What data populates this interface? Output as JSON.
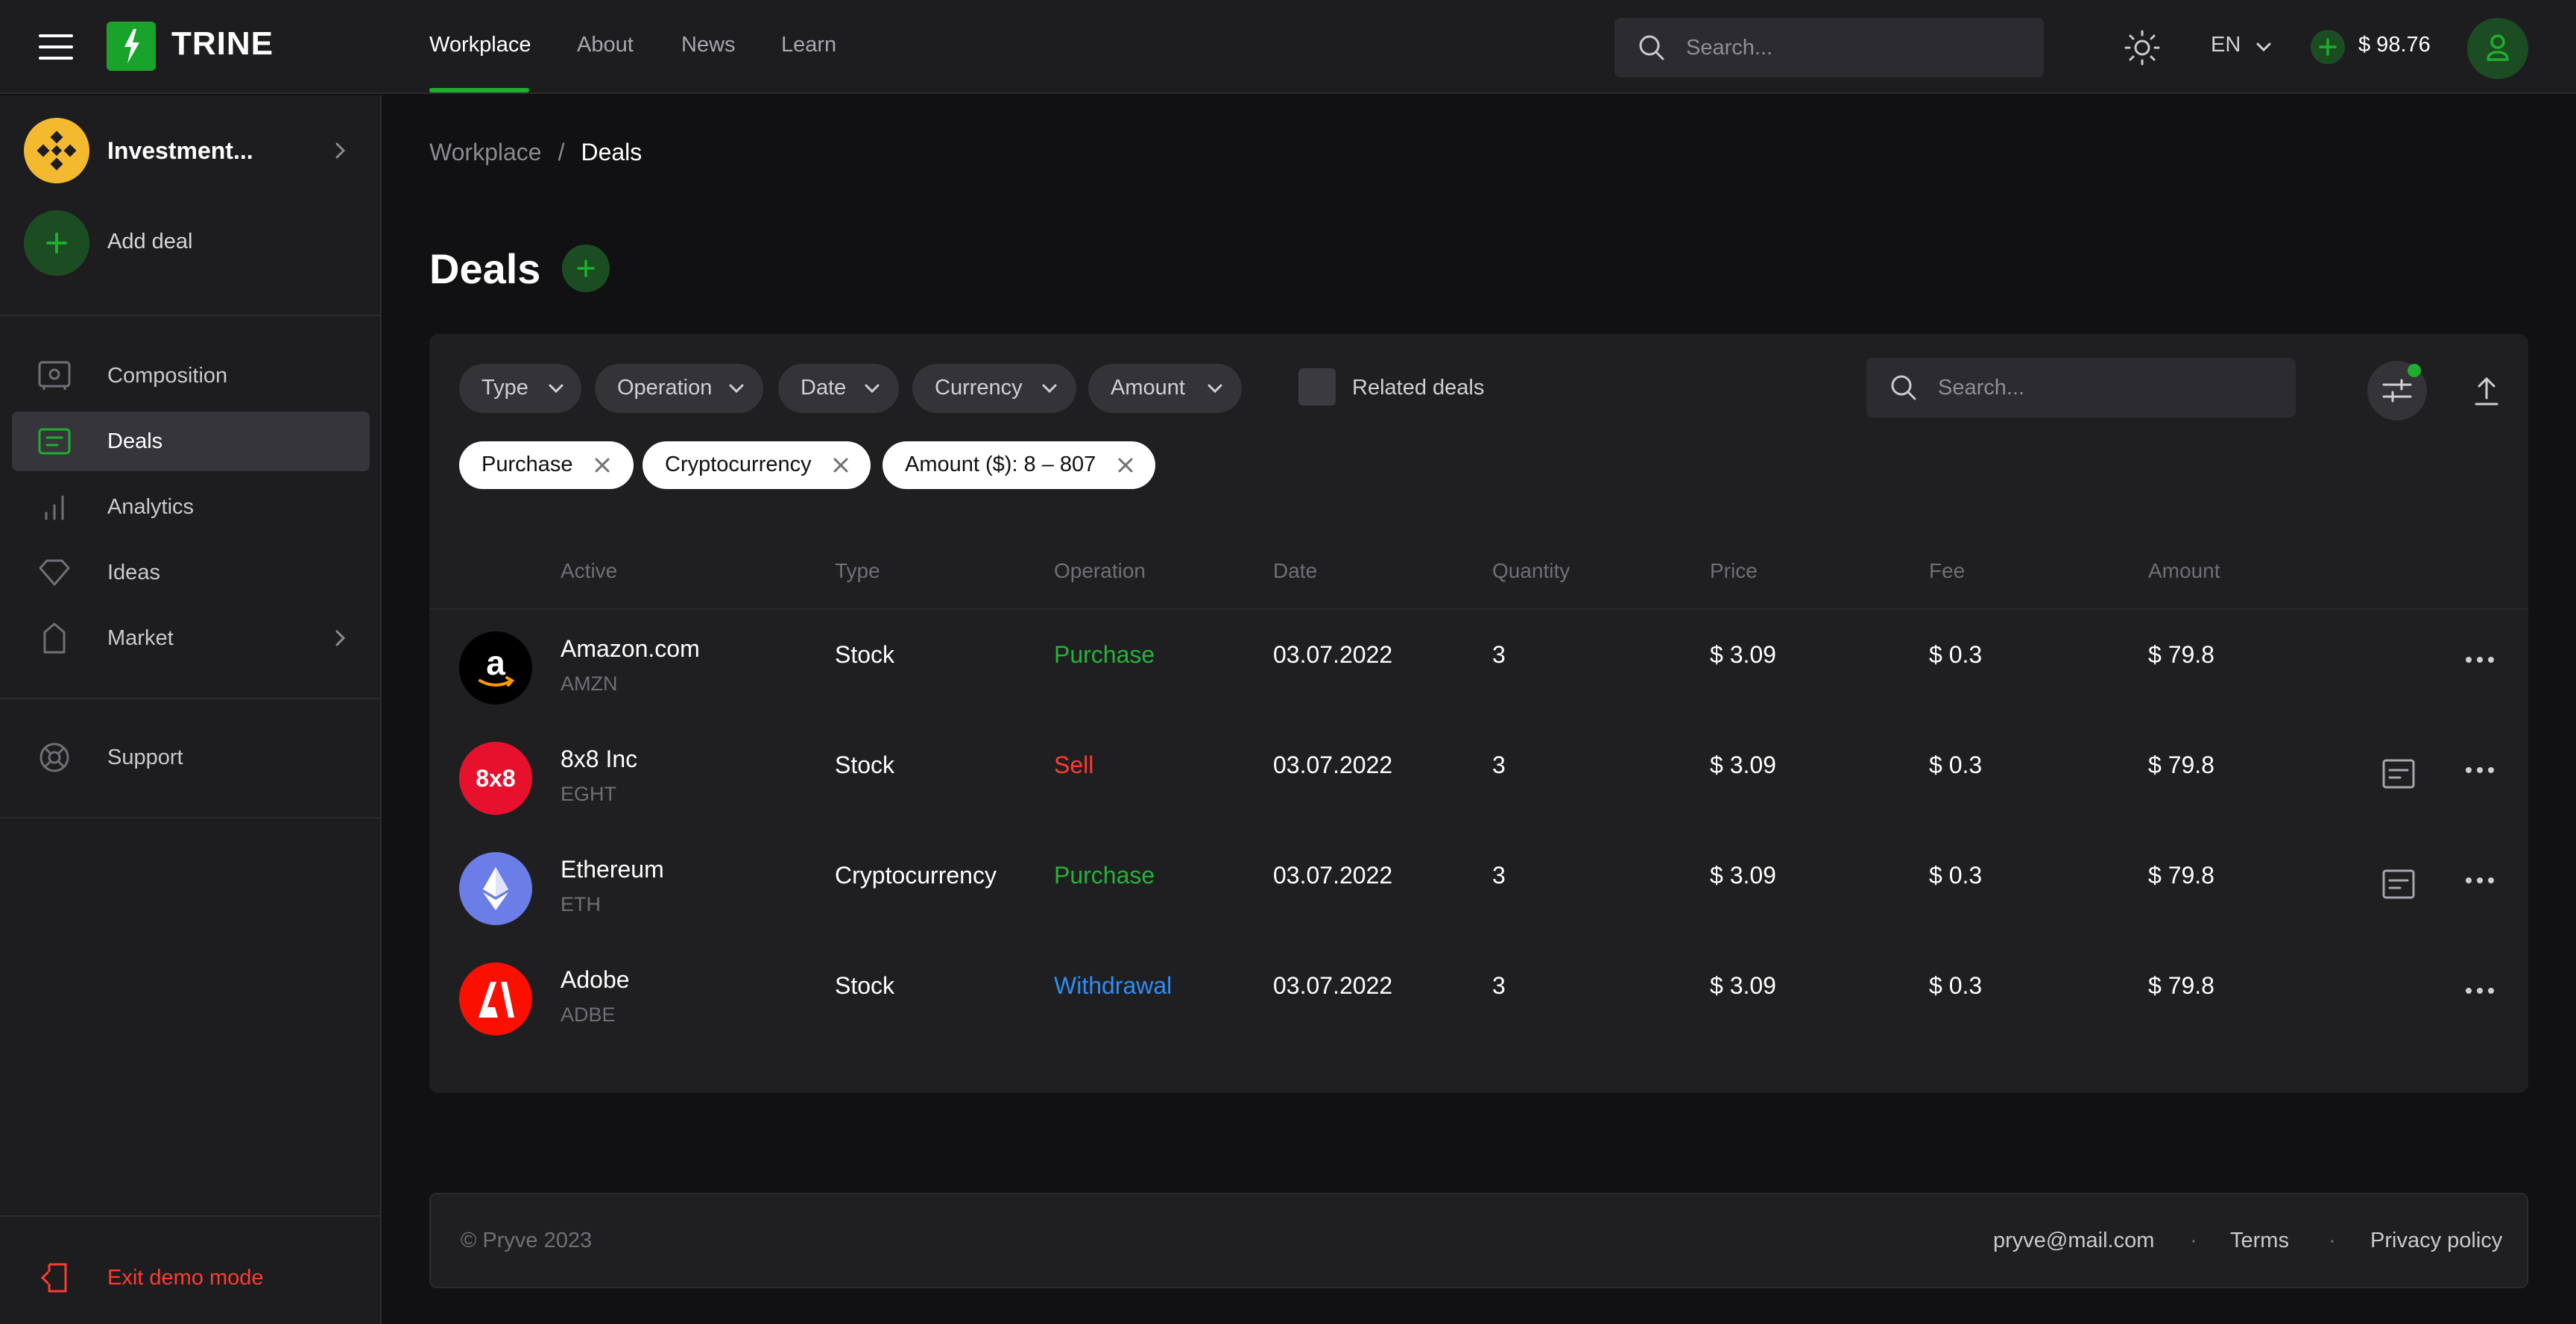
{
  "app": {
    "name": "TRINE"
  },
  "nav": {
    "items": [
      "Workplace",
      "About",
      "News",
      "Learn"
    ],
    "active": "Workplace"
  },
  "header": {
    "search_placeholder": "Search...",
    "language": "EN",
    "balance": "$ 98.76"
  },
  "sidebar": {
    "portfolio_name": "Investment...",
    "add_deal": "Add deal",
    "items": [
      {
        "label": "Composition",
        "icon": "safe-icon"
      },
      {
        "label": "Deals",
        "icon": "list-icon",
        "active": true
      },
      {
        "label": "Analytics",
        "icon": "bar-chart-icon"
      },
      {
        "label": "Ideas",
        "icon": "diamond-icon"
      },
      {
        "label": "Market",
        "icon": "tag-icon"
      }
    ],
    "support": "Support",
    "exit": "Exit demo mode"
  },
  "breadcrumb": {
    "parent": "Workplace",
    "separator": "/",
    "current": "Deals"
  },
  "page": {
    "title": "Deals"
  },
  "filters": {
    "chips": [
      "Type",
      "Operation",
      "Date",
      "Currency",
      "Amount"
    ],
    "related_deals": "Related deals",
    "search_placeholder": "Search...",
    "active": [
      "Purchase",
      "Cryptocurrency",
      "Amount ($): 8 – 807"
    ]
  },
  "table": {
    "columns": [
      "Active",
      "Type",
      "Operation",
      "Date",
      "Quantity",
      "Price",
      "Fee",
      "Amount"
    ],
    "rows": [
      {
        "name": "Amazon.com",
        "ticker": "AMZN",
        "type": "Stock",
        "operation": "Purchase",
        "date": "03.07.2022",
        "quantity": "3",
        "price": "$ 3.09",
        "fee": "$ 0.3",
        "amount": "$ 79.8",
        "logo_text": "a"
      },
      {
        "name": "8x8 Inc",
        "ticker": "EGHT",
        "type": "Stock",
        "operation": "Sell",
        "date": "03.07.2022",
        "quantity": "3",
        "price": "$ 3.09",
        "fee": "$ 0.3",
        "amount": "$ 79.8",
        "logo_text": "8x8"
      },
      {
        "name": "Ethereum",
        "ticker": "ETH",
        "type": "Cryptocurrency",
        "operation": "Purchase",
        "date": "03.07.2022",
        "quantity": "3",
        "price": "$ 3.09",
        "fee": "$ 0.3",
        "amount": "$ 79.8",
        "logo_text": ""
      },
      {
        "name": "Adobe",
        "ticker": "ADBE",
        "type": "Stock",
        "operation": "Withdrawal",
        "date": "03.07.2022",
        "quantity": "3",
        "price": "$ 3.09",
        "fee": "$ 0.3",
        "amount": "$ 79.8",
        "logo_text": ""
      }
    ]
  },
  "footer": {
    "copyright": "© Pryve 2023",
    "email": "pryve@mail.com",
    "terms": "Terms",
    "privacy": "Privacy policy"
  },
  "colors": {
    "accent": "#1fae2e",
    "purchase": "#24b33a",
    "sell": "#ff3b30",
    "withdrawal": "#2f8ef4",
    "exit": "#ff3b30"
  }
}
